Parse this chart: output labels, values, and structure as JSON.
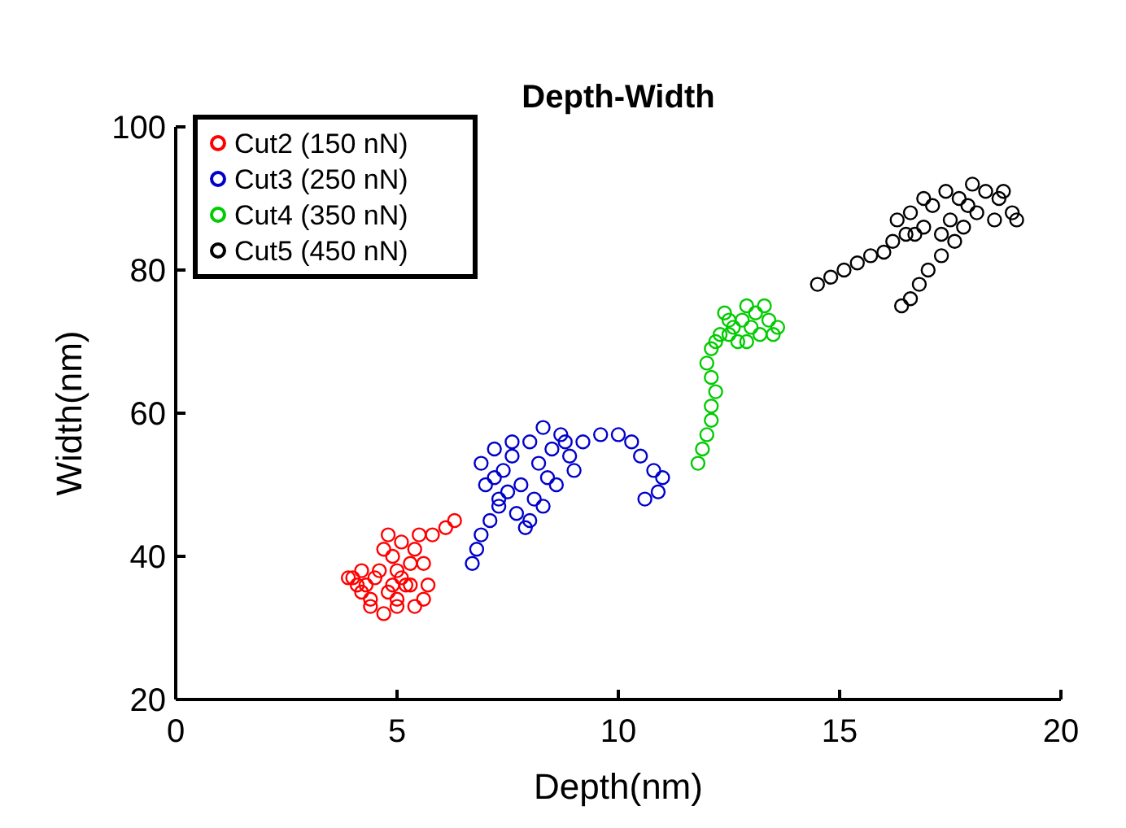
{
  "chart_data": {
    "type": "scatter",
    "title": "Depth-Width",
    "xlabel": "Depth(nm)",
    "ylabel": "Width(nm)",
    "xlim": [
      0,
      20
    ],
    "xticks": [
      0,
      5,
      10,
      15,
      20
    ],
    "ylim": [
      20,
      100
    ],
    "yticks": [
      20,
      40,
      60,
      80,
      100
    ],
    "grid": false,
    "legend": "top left",
    "marker": "circle",
    "series": [
      {
        "name": "Cut2 (150 nN)",
        "color": "#ff0000",
        "x": [
          4.0,
          4.2,
          4.4,
          4.3,
          4.6,
          4.8,
          5.0,
          5.2,
          4.9,
          5.1,
          5.4,
          5.6,
          5.3,
          5.6,
          5.0,
          4.7,
          4.5,
          4.2,
          4.4,
          4.7,
          5.1,
          5.5,
          5.8,
          6.1,
          6.3,
          5.3,
          4.9,
          4.1,
          3.9,
          5.7,
          5.4,
          4.8,
          5.0
        ],
        "values": [
          37,
          35,
          33,
          36,
          38,
          35,
          33,
          36,
          40,
          42,
          41,
          39,
          36,
          34,
          38,
          41,
          37,
          38,
          34,
          32,
          37,
          43,
          43,
          44,
          45,
          39,
          36,
          36,
          37,
          36,
          33,
          43,
          34
        ]
      },
      {
        "name": "Cut3 (250 nN)",
        "color": "#0000cc",
        "x": [
          6.7,
          6.8,
          6.9,
          7.1,
          7.3,
          7.0,
          6.9,
          7.2,
          7.6,
          7.4,
          7.8,
          8.1,
          7.7,
          7.9,
          8.3,
          8.6,
          8.2,
          8.0,
          8.3,
          8.7,
          8.5,
          8.9,
          9.2,
          9.6,
          10.0,
          10.3,
          10.5,
          10.8,
          11.0,
          10.9,
          10.6,
          7.5,
          7.2,
          8.4,
          9.0,
          8.8,
          7.6,
          7.3,
          8.0
        ],
        "values": [
          39,
          41,
          43,
          45,
          47,
          50,
          53,
          55,
          54,
          52,
          50,
          48,
          46,
          44,
          47,
          50,
          53,
          56,
          58,
          57,
          55,
          54,
          56,
          57,
          57,
          56,
          54,
          52,
          51,
          49,
          48,
          49,
          51,
          51,
          52,
          56,
          56,
          48,
          45
        ]
      },
      {
        "name": "Cut4 (350 nN)",
        "color": "#00cc00",
        "x": [
          11.8,
          11.9,
          12.0,
          12.1,
          12.1,
          12.2,
          12.1,
          12.0,
          12.1,
          12.2,
          12.5,
          12.8,
          13.1,
          13.4,
          13.6,
          13.2,
          12.9,
          12.6,
          12.4,
          12.9,
          13.3,
          13.5,
          12.3,
          12.7,
          13.0,
          12.5
        ],
        "values": [
          53,
          55,
          57,
          59,
          61,
          63,
          65,
          67,
          69,
          70,
          71,
          73,
          74,
          73,
          72,
          71,
          70,
          72,
          74,
          75,
          75,
          71,
          71,
          70,
          72,
          73
        ]
      },
      {
        "name": "Cut5 (450 nN)",
        "color": "#000000",
        "x": [
          14.5,
          14.8,
          15.1,
          15.4,
          15.7,
          16.0,
          16.2,
          16.5,
          16.3,
          16.6,
          16.9,
          17.1,
          17.4,
          17.7,
          18.0,
          18.3,
          18.6,
          18.9,
          19.0,
          18.5,
          18.1,
          17.8,
          17.5,
          17.3,
          17.6,
          17.3,
          17.0,
          16.8,
          16.6,
          16.4,
          17.9,
          18.7,
          16.9,
          16.7
        ],
        "values": [
          78,
          79,
          80,
          81,
          82,
          82.5,
          84,
          85,
          87,
          88,
          86,
          89,
          91,
          90,
          92,
          91,
          90,
          88,
          87,
          87,
          88,
          86,
          87,
          85,
          84,
          82,
          80,
          78,
          76,
          75,
          89,
          91,
          90,
          85
        ]
      }
    ]
  }
}
